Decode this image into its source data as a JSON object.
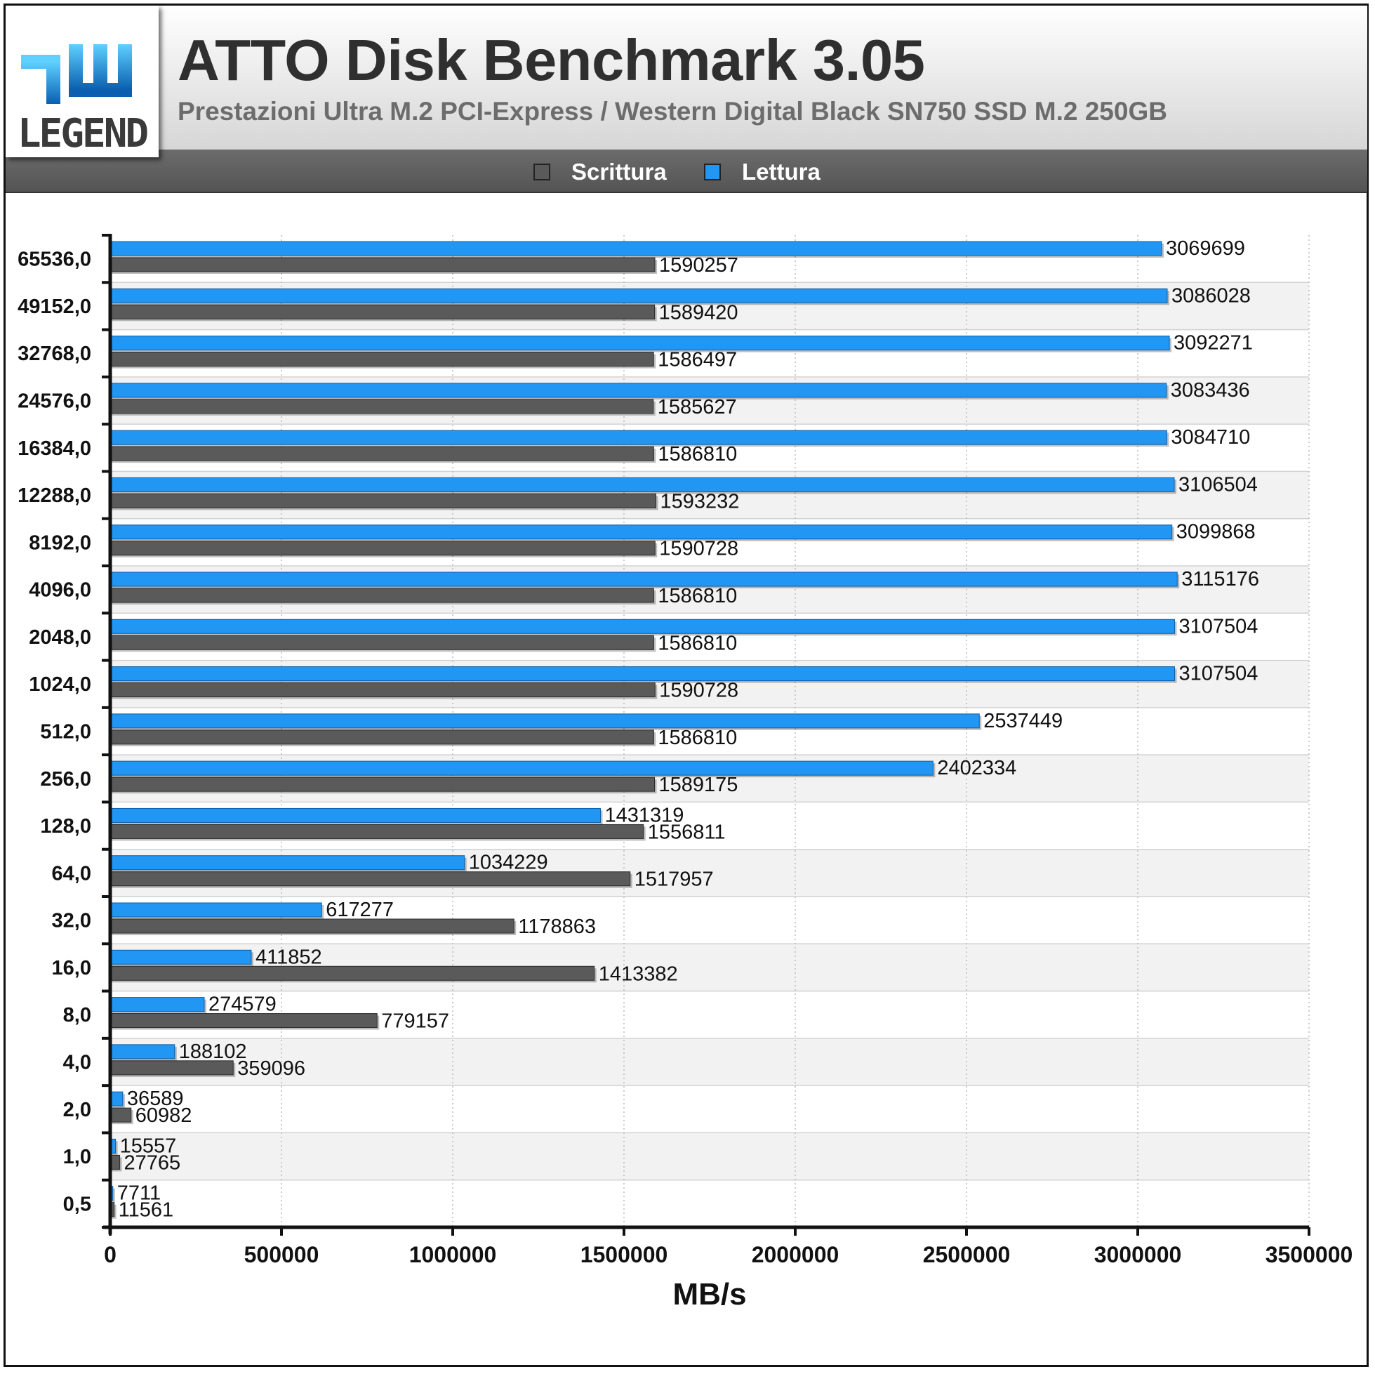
{
  "header": {
    "title": "ATTO Disk Benchmark 3.05",
    "subtitle": "Prestazioni Ultra M.2 PCI-Express / Western Digital Black SN750 SSD M.2 250GB",
    "logo_text": "hw LEGEND",
    "logo_word": "LEGEND"
  },
  "colors": {
    "write": "#5a5a5a",
    "read": "#2196f3",
    "band_even": "#ffffff",
    "band_odd": "#f2f2f2",
    "grid": "#bbbbbb"
  },
  "chart_data": {
    "type": "bar",
    "orientation": "horizontal",
    "categories": [
      "65536,0",
      "49152,0",
      "32768,0",
      "24576,0",
      "16384,0",
      "12288,0",
      "8192,0",
      "4096,0",
      "2048,0",
      "1024,0",
      "512,0",
      "256,0",
      "128,0",
      "64,0",
      "32,0",
      "16,0",
      "8,0",
      "4,0",
      "2,0",
      "1,0",
      "0,5"
    ],
    "series": [
      {
        "name": "Lettura",
        "color": "#2196f3",
        "values": [
          3069699,
          3086028,
          3092271,
          3083436,
          3084710,
          3106504,
          3099868,
          3115176,
          3107504,
          3107504,
          2537449,
          2402334,
          1431319,
          1034229,
          617277,
          411852,
          274579,
          188102,
          36589,
          15557,
          7711
        ]
      },
      {
        "name": "Scrittura",
        "color": "#5a5a5a",
        "values": [
          1590257,
          1589420,
          1586497,
          1585627,
          1586810,
          1593232,
          1590728,
          1586810,
          1586810,
          1590728,
          1586810,
          1589175,
          1556811,
          1517957,
          1178863,
          1413382,
          779157,
          359096,
          60982,
          27765,
          11561
        ]
      }
    ],
    "legend": [
      "Scrittura",
      "Lettura"
    ],
    "legend_position": "top-center",
    "xlabel": "MB/s",
    "ylabel": "",
    "xlim": [
      0,
      3500000
    ],
    "xticks": [
      0,
      500000,
      1000000,
      1500000,
      2000000,
      2500000,
      3000000,
      3500000
    ],
    "grid": "vertical-dotted"
  }
}
